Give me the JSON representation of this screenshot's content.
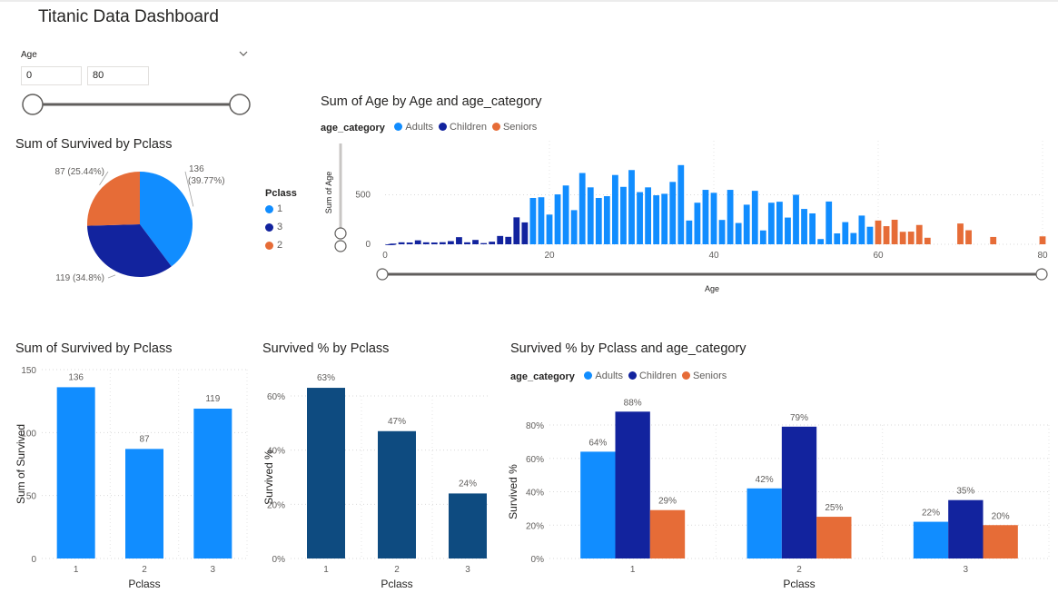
{
  "header": {
    "title": "Titanic Data Dashboard"
  },
  "slicer": {
    "label": "Age",
    "min_value": "0",
    "max_value": "80",
    "chevron_icon": "chevron-down-icon"
  },
  "colors": {
    "blue": "#118dff",
    "navy": "#12239e",
    "orange": "#e66c37",
    "darkblue": "#0e4b80"
  },
  "pie_legend": {
    "title": "Pclass",
    "items": [
      {
        "label": "1",
        "color": "#118dff"
      },
      {
        "label": "3",
        "color": "#12239e"
      },
      {
        "label": "2",
        "color": "#e66c37"
      }
    ]
  },
  "chart_data": [
    {
      "id": "pie",
      "type": "pie",
      "title": "Sum of Survived by Pclass",
      "categories": [
        "1",
        "3",
        "2"
      ],
      "values": [
        136,
        119,
        87
      ],
      "labels": [
        "136 (39.77%)",
        "119 (34.8%)",
        "87 (25.44%)"
      ],
      "colors": [
        "#118dff",
        "#12239e",
        "#e66c37"
      ]
    },
    {
      "id": "age",
      "type": "bar",
      "title": "Sum of Age by Age and age_category",
      "xlabel": "Age",
      "ylabel": "Sum of Age",
      "legend_title": "age_category",
      "legend": [
        {
          "name": "Adults",
          "color": "#118dff"
        },
        {
          "name": "Children",
          "color": "#12239e"
        },
        {
          "name": "Seniors",
          "color": "#e66c37"
        }
      ],
      "xlim": [
        0,
        80
      ],
      "ylim": [
        0,
        1000
      ],
      "xticks": [
        0,
        20,
        40,
        60,
        80
      ],
      "yticks": [
        0,
        500
      ],
      "points": [
        [
          0.42,
          0,
          "C"
        ],
        [
          0.67,
          0,
          "C"
        ],
        [
          0.75,
          2,
          "C"
        ],
        [
          0.83,
          2,
          "C"
        ],
        [
          0.92,
          1,
          "C"
        ],
        [
          1,
          7,
          "C"
        ],
        [
          2,
          20,
          "C"
        ],
        [
          3,
          18,
          "C"
        ],
        [
          4,
          40,
          "C"
        ],
        [
          5,
          20,
          "C"
        ],
        [
          6,
          18,
          "C"
        ],
        [
          7,
          21,
          "C"
        ],
        [
          8,
          32,
          "C"
        ],
        [
          9,
          72,
          "C"
        ],
        [
          10,
          20,
          "C"
        ],
        [
          11,
          44,
          "C"
        ],
        [
          12,
          12,
          "C"
        ],
        [
          13,
          26,
          "C"
        ],
        [
          14,
          84,
          "C"
        ],
        [
          15,
          75,
          "C"
        ],
        [
          16,
          272,
          "C"
        ],
        [
          17,
          221,
          "C"
        ],
        [
          18,
          468,
          "A"
        ],
        [
          19,
          475,
          "A"
        ],
        [
          20,
          300,
          "A"
        ],
        [
          21,
          504,
          "A"
        ],
        [
          22,
          594,
          "A"
        ],
        [
          23,
          345,
          "A"
        ],
        [
          24,
          720,
          "A"
        ],
        [
          25,
          575,
          "A"
        ],
        [
          26,
          468,
          "A"
        ],
        [
          27,
          486,
          "A"
        ],
        [
          28,
          700,
          "A"
        ],
        [
          29,
          580,
          "A"
        ],
        [
          30,
          750,
          "A"
        ],
        [
          31,
          527,
          "A"
        ],
        [
          32,
          575,
          "A"
        ],
        [
          33,
          495,
          "A"
        ],
        [
          34,
          510,
          "A"
        ],
        [
          35,
          630,
          "A"
        ],
        [
          36,
          800,
          "A"
        ],
        [
          37,
          240,
          "A"
        ],
        [
          38,
          420,
          "A"
        ],
        [
          39,
          550,
          "A"
        ],
        [
          40,
          520,
          "A"
        ],
        [
          41,
          246,
          "A"
        ],
        [
          42,
          550,
          "A"
        ],
        [
          43,
          215,
          "A"
        ],
        [
          44,
          400,
          "A"
        ],
        [
          45,
          540,
          "A"
        ],
        [
          46,
          140,
          "A"
        ],
        [
          47,
          420,
          "A"
        ],
        [
          48,
          430,
          "A"
        ],
        [
          49,
          270,
          "A"
        ],
        [
          50,
          500,
          "A"
        ],
        [
          51,
          357,
          "A"
        ],
        [
          52,
          312,
          "A"
        ],
        [
          53,
          53,
          "A"
        ],
        [
          54,
          432,
          "A"
        ],
        [
          55,
          110,
          "A"
        ],
        [
          56,
          224,
          "A"
        ],
        [
          57,
          114,
          "A"
        ],
        [
          58,
          290,
          "A"
        ],
        [
          59,
          177,
          "A"
        ],
        [
          60,
          240,
          "S"
        ],
        [
          61,
          183,
          "S"
        ],
        [
          62,
          248,
          "S"
        ],
        [
          63,
          126,
          "S"
        ],
        [
          64,
          128,
          "S"
        ],
        [
          65,
          195,
          "S"
        ],
        [
          66,
          66,
          "S"
        ],
        [
          70,
          210,
          "S"
        ],
        [
          71,
          142,
          "S"
        ],
        [
          74,
          74,
          "S"
        ],
        [
          80,
          80,
          "S"
        ]
      ]
    },
    {
      "id": "bar1",
      "type": "bar",
      "title": "Sum of Survived by Pclass",
      "xlabel": "Pclass",
      "ylabel": "Sum of Survived",
      "categories": [
        "1",
        "2",
        "3"
      ],
      "values": [
        136,
        87,
        119
      ],
      "labels": [
        "136",
        "87",
        "119"
      ],
      "ylim": [
        0,
        150
      ],
      "yticks": [
        0,
        50,
        100,
        150
      ],
      "color": "#118dff"
    },
    {
      "id": "bar2",
      "type": "bar",
      "title": "Survived % by Pclass",
      "xlabel": "Pclass",
      "ylabel": "Survived %",
      "categories": [
        "1",
        "2",
        "3"
      ],
      "values": [
        63,
        47,
        24
      ],
      "labels": [
        "63%",
        "47%",
        "24%"
      ],
      "ylim": [
        0,
        60
      ],
      "yticks": [
        0,
        20,
        40,
        60
      ],
      "ytick_labels": [
        "0%",
        "20%",
        "40%",
        "60%"
      ],
      "color": "#0e4b80"
    },
    {
      "id": "bar3",
      "type": "bar",
      "title": "Survived % by Pclass and age_category",
      "xlabel": "Pclass",
      "ylabel": "Survived %",
      "legend_title": "age_category",
      "categories": [
        "1",
        "2",
        "3"
      ],
      "series": [
        {
          "name": "Adults",
          "values": [
            64,
            42,
            22
          ],
          "labels": [
            "64%",
            "42%",
            "22%"
          ],
          "color": "#118dff"
        },
        {
          "name": "Children",
          "values": [
            88,
            79,
            35
          ],
          "labels": [
            "88%",
            "79%",
            "35%"
          ],
          "color": "#12239e"
        },
        {
          "name": "Seniors",
          "values": [
            29,
            25,
            20
          ],
          "labels": [
            "29%",
            "25%",
            "20%"
          ],
          "color": "#e66c37"
        }
      ],
      "ylim": [
        0,
        80
      ],
      "yticks": [
        0,
        20,
        40,
        60,
        80
      ],
      "ytick_labels": [
        "0%",
        "20%",
        "40%",
        "60%",
        "80%"
      ]
    }
  ]
}
